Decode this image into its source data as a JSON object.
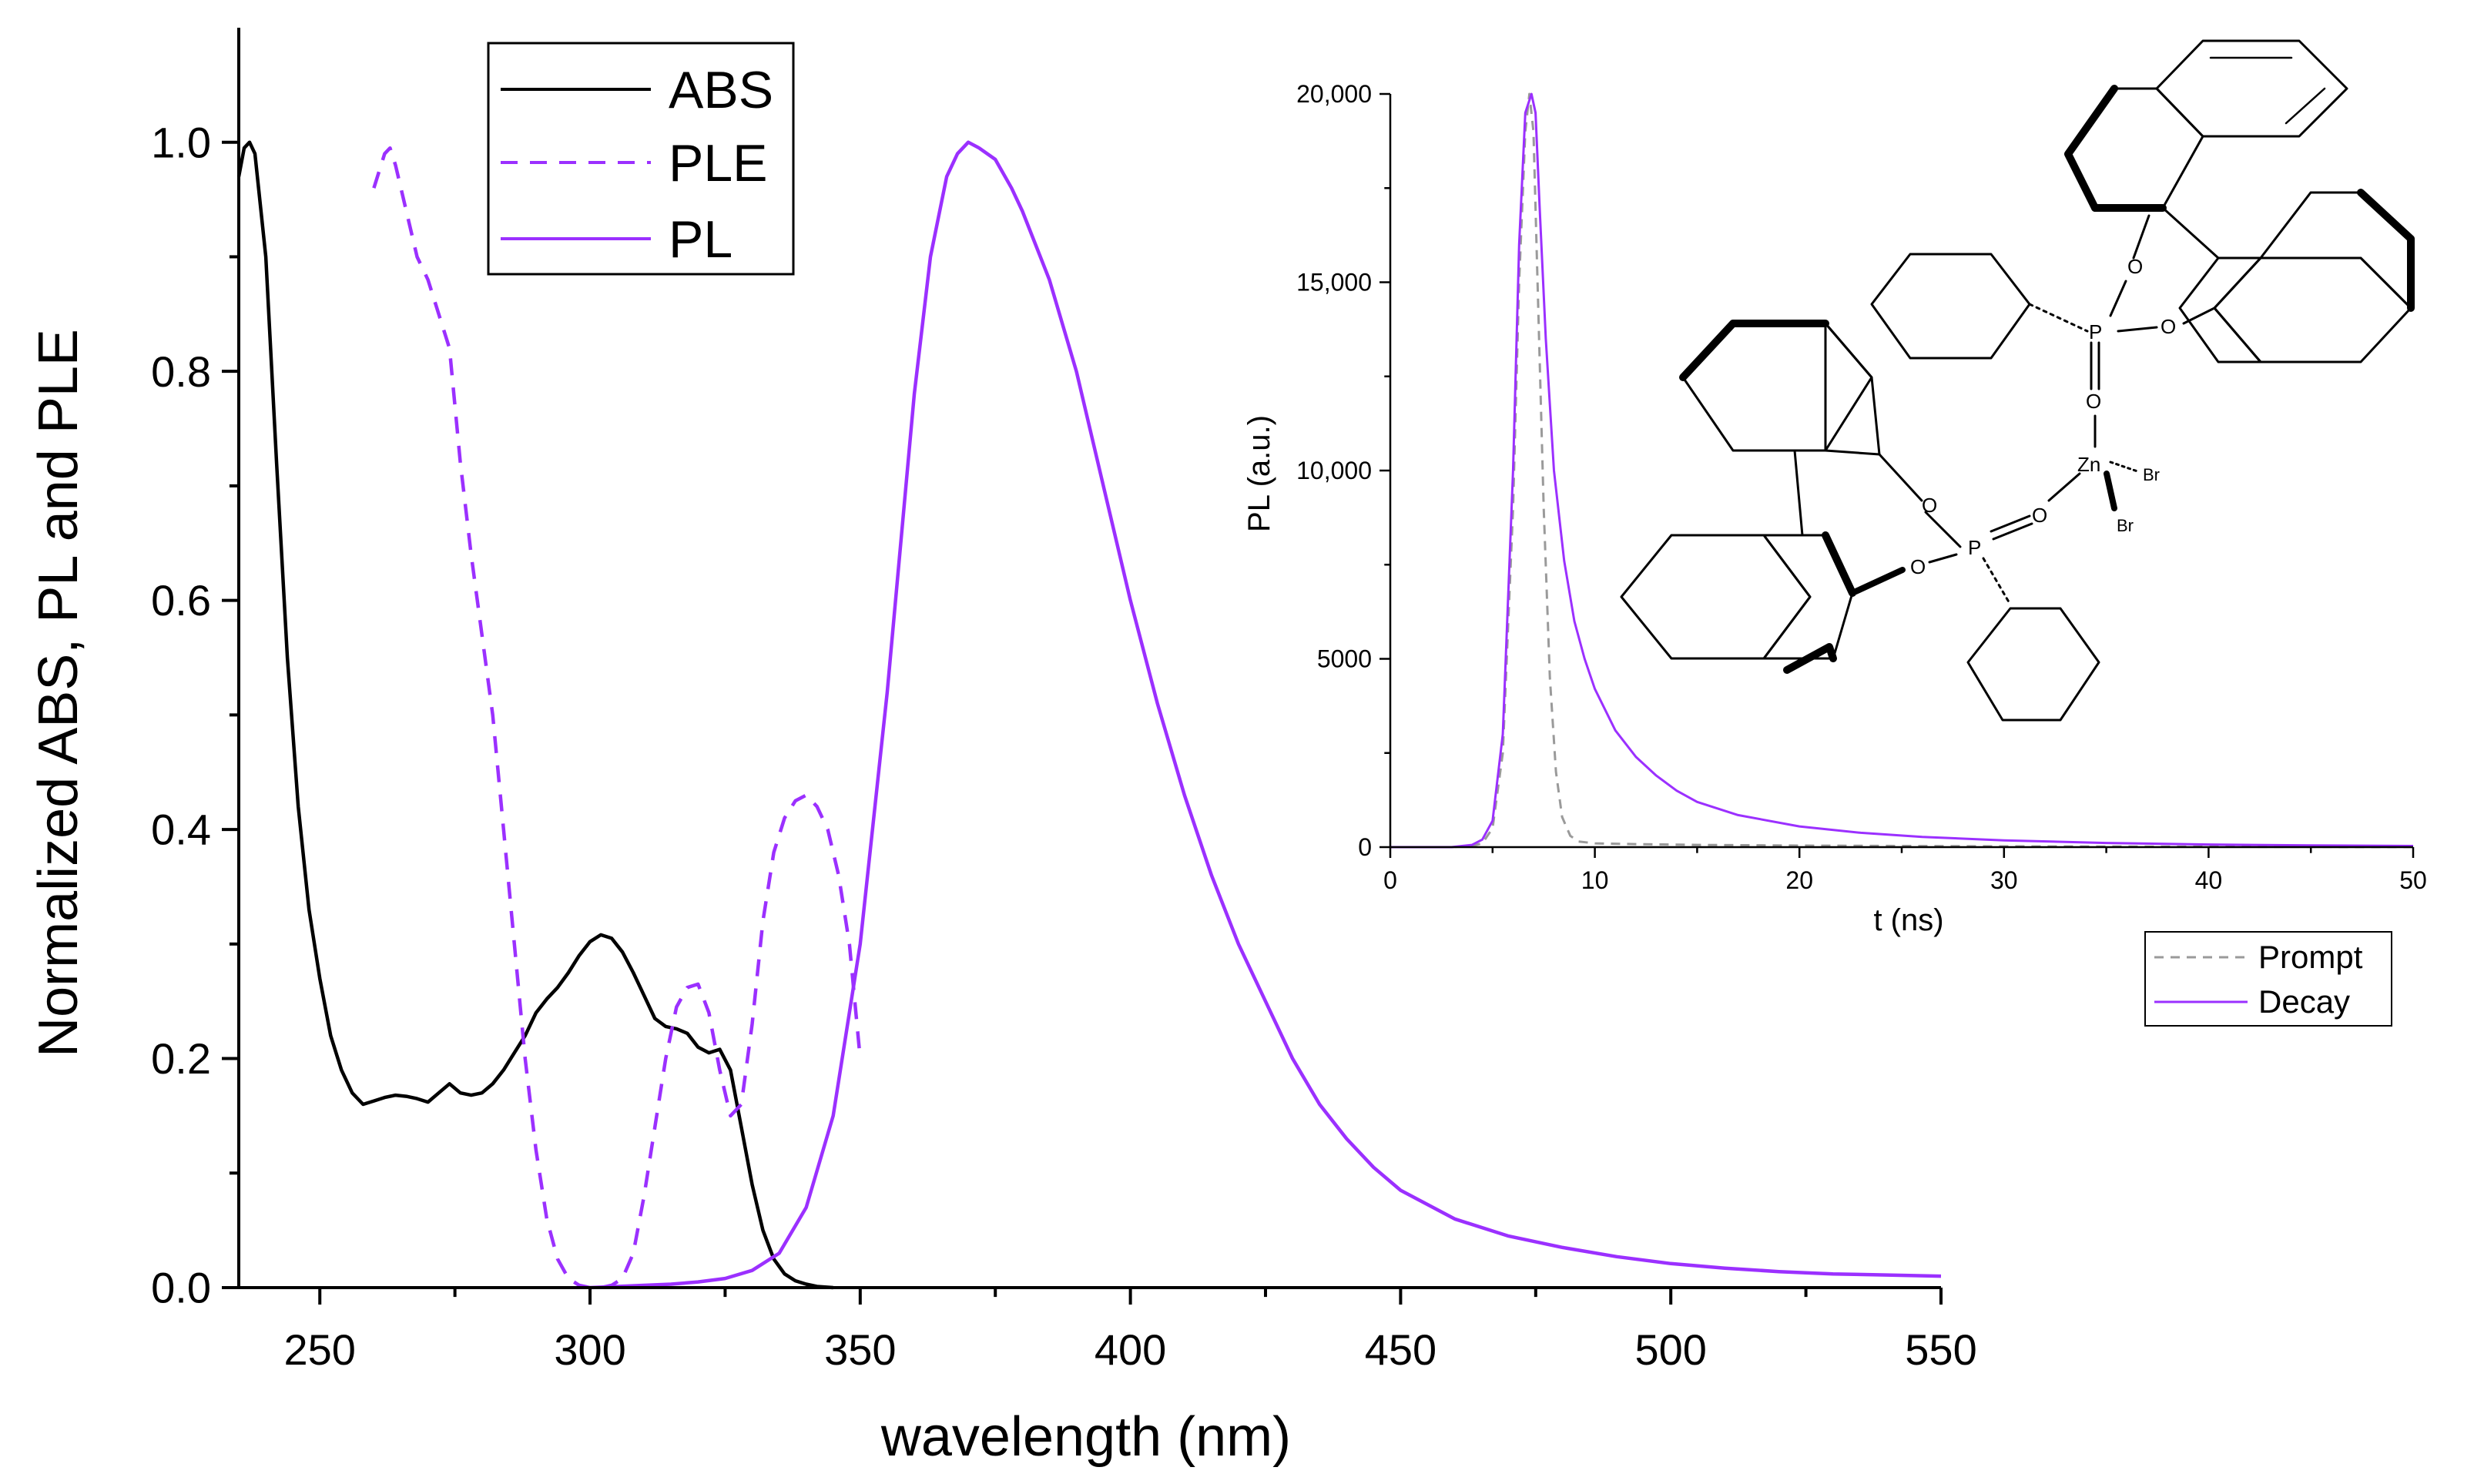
{
  "colors": {
    "abs": "#000000",
    "purple": "#9b30ff",
    "prompt": "#9a9a9a",
    "axis": "#000000",
    "background": "#ffffff"
  },
  "chart_data": [
    {
      "type": "line",
      "xlabel": "wavelength (nm)",
      "ylabel": "Normalized ABS, PL and PLE",
      "xlim": [
        235,
        550
      ],
      "ylim": [
        0,
        1.1
      ],
      "xticks": [
        250,
        300,
        350,
        400,
        450,
        500,
        550
      ],
      "yticks": [
        0.0,
        0.2,
        0.4,
        0.6,
        0.8,
        1.0
      ],
      "xtick_labels": [
        "250",
        "300",
        "350",
        "400",
        "450",
        "500",
        "550"
      ],
      "ytick_labels": [
        "0.0",
        "0.2",
        "0.4",
        "0.6",
        "0.8",
        "1.0"
      ],
      "grid": false,
      "legend_position": "top-center",
      "series": [
        {
          "name": "ABS",
          "color": "#000000",
          "dash": "solid",
          "x": [
            235,
            236,
            237,
            238,
            240,
            242,
            244,
            246,
            248,
            250,
            252,
            254,
            256,
            258,
            260,
            262,
            264,
            266,
            268,
            270,
            272,
            274,
            276,
            278,
            280,
            282,
            284,
            286,
            288,
            290,
            292,
            294,
            296,
            298,
            300,
            302,
            304,
            306,
            308,
            310,
            312,
            314,
            316,
            318,
            320,
            322,
            324,
            326,
            328,
            330,
            332,
            334,
            336,
            338,
            340,
            342,
            345
          ],
          "y": [
            0.97,
            0.995,
            1.0,
            0.99,
            0.9,
            0.72,
            0.55,
            0.42,
            0.33,
            0.27,
            0.22,
            0.19,
            0.17,
            0.16,
            0.163,
            0.166,
            0.168,
            0.167,
            0.165,
            0.162,
            0.17,
            0.178,
            0.17,
            0.168,
            0.17,
            0.178,
            0.19,
            0.205,
            0.22,
            0.24,
            0.252,
            0.262,
            0.275,
            0.29,
            0.302,
            0.308,
            0.305,
            0.293,
            0.275,
            0.255,
            0.235,
            0.228,
            0.226,
            0.222,
            0.21,
            0.205,
            0.208,
            0.19,
            0.14,
            0.09,
            0.05,
            0.025,
            0.012,
            0.006,
            0.003,
            0.001,
            0.0
          ]
        },
        {
          "name": "PLE",
          "color": "#9b30ff",
          "dash": "dashed",
          "x": [
            260,
            262,
            263,
            264,
            266,
            268,
            270,
            272,
            274,
            276,
            278,
            280,
            282,
            284,
            286,
            288,
            290,
            292,
            294,
            296,
            298,
            300,
            302,
            304,
            306,
            308,
            310,
            312,
            314,
            316,
            318,
            320,
            322,
            324,
            326,
            328,
            330,
            332,
            334,
            336,
            338,
            340,
            342,
            344,
            346,
            348,
            350
          ],
          "y": [
            0.96,
            0.99,
            0.995,
            0.98,
            0.94,
            0.9,
            0.88,
            0.85,
            0.82,
            0.72,
            0.64,
            0.57,
            0.5,
            0.4,
            0.3,
            0.2,
            0.12,
            0.06,
            0.025,
            0.008,
            0.002,
            0.0,
            0.0,
            0.002,
            0.008,
            0.03,
            0.08,
            0.14,
            0.2,
            0.245,
            0.262,
            0.265,
            0.24,
            0.19,
            0.15,
            0.16,
            0.23,
            0.32,
            0.38,
            0.41,
            0.425,
            0.43,
            0.42,
            0.4,
            0.36,
            0.3,
            0.2
          ]
        },
        {
          "name": "PL",
          "color": "#9b30ff",
          "dash": "solid",
          "x": [
            300,
            305,
            310,
            315,
            320,
            325,
            330,
            335,
            340,
            345,
            350,
            355,
            360,
            363,
            366,
            368,
            370,
            372,
            375,
            378,
            380,
            385,
            390,
            395,
            400,
            405,
            410,
            415,
            420,
            425,
            430,
            435,
            440,
            445,
            450,
            460,
            470,
            480,
            490,
            500,
            510,
            520,
            530,
            540,
            550
          ],
          "y": [
            0.0,
            0.001,
            0.002,
            0.003,
            0.005,
            0.008,
            0.015,
            0.03,
            0.07,
            0.15,
            0.3,
            0.52,
            0.78,
            0.9,
            0.97,
            0.99,
            1.0,
            0.995,
            0.985,
            0.96,
            0.94,
            0.88,
            0.8,
            0.7,
            0.6,
            0.51,
            0.43,
            0.36,
            0.3,
            0.25,
            0.2,
            0.16,
            0.13,
            0.105,
            0.085,
            0.06,
            0.045,
            0.035,
            0.027,
            0.021,
            0.017,
            0.014,
            0.012,
            0.011,
            0.01
          ]
        }
      ]
    },
    {
      "type": "line",
      "xlabel": "t (ns)",
      "ylabel": "PL (a.u.)",
      "xlim": [
        0,
        50
      ],
      "ylim": [
        0,
        20000
      ],
      "xticks": [
        0,
        10,
        20,
        30,
        40,
        50
      ],
      "yticks": [
        0,
        5000,
        10000,
        15000,
        20000
      ],
      "xtick_labels": [
        "0",
        "10",
        "20",
        "30",
        "40",
        "50"
      ],
      "ytick_labels": [
        "0",
        "5000",
        "10,000",
        "15,000",
        "20,000"
      ],
      "grid": false,
      "legend_position": "bottom-right",
      "series": [
        {
          "name": "Prompt",
          "color": "#9a9a9a",
          "dash": "dashed",
          "x": [
            0,
            3,
            4,
            4.5,
            5,
            5.5,
            6,
            6.3,
            6.6,
            6.8,
            7.0,
            7.2,
            7.5,
            7.8,
            8.1,
            8.4,
            8.8,
            9.2,
            10,
            12,
            15,
            20,
            30,
            40,
            50
          ],
          "y": [
            0,
            0,
            30,
            100,
            500,
            2500,
            9000,
            15000,
            19000,
            20000,
            19000,
            15000,
            9000,
            4500,
            2000,
            800,
            300,
            150,
            100,
            80,
            60,
            40,
            20,
            10,
            5
          ]
        },
        {
          "name": "Decay",
          "color": "#9b30ff",
          "dash": "solid",
          "x": [
            0,
            3,
            4,
            4.5,
            5,
            5.5,
            6,
            6.3,
            6.6,
            6.9,
            7.1,
            7.3,
            7.6,
            8,
            8.5,
            9,
            9.5,
            10,
            11,
            12,
            13,
            14,
            15,
            17,
            20,
            23,
            26,
            30,
            35,
            40,
            45,
            50
          ],
          "y": [
            0,
            0,
            60,
            200,
            700,
            3000,
            10000,
            16000,
            19500,
            20000,
            19500,
            17000,
            13500,
            10000,
            7600,
            6000,
            5000,
            4200,
            3100,
            2400,
            1900,
            1500,
            1200,
            850,
            550,
            380,
            270,
            180,
            110,
            70,
            45,
            30
          ]
        }
      ]
    }
  ]
}
